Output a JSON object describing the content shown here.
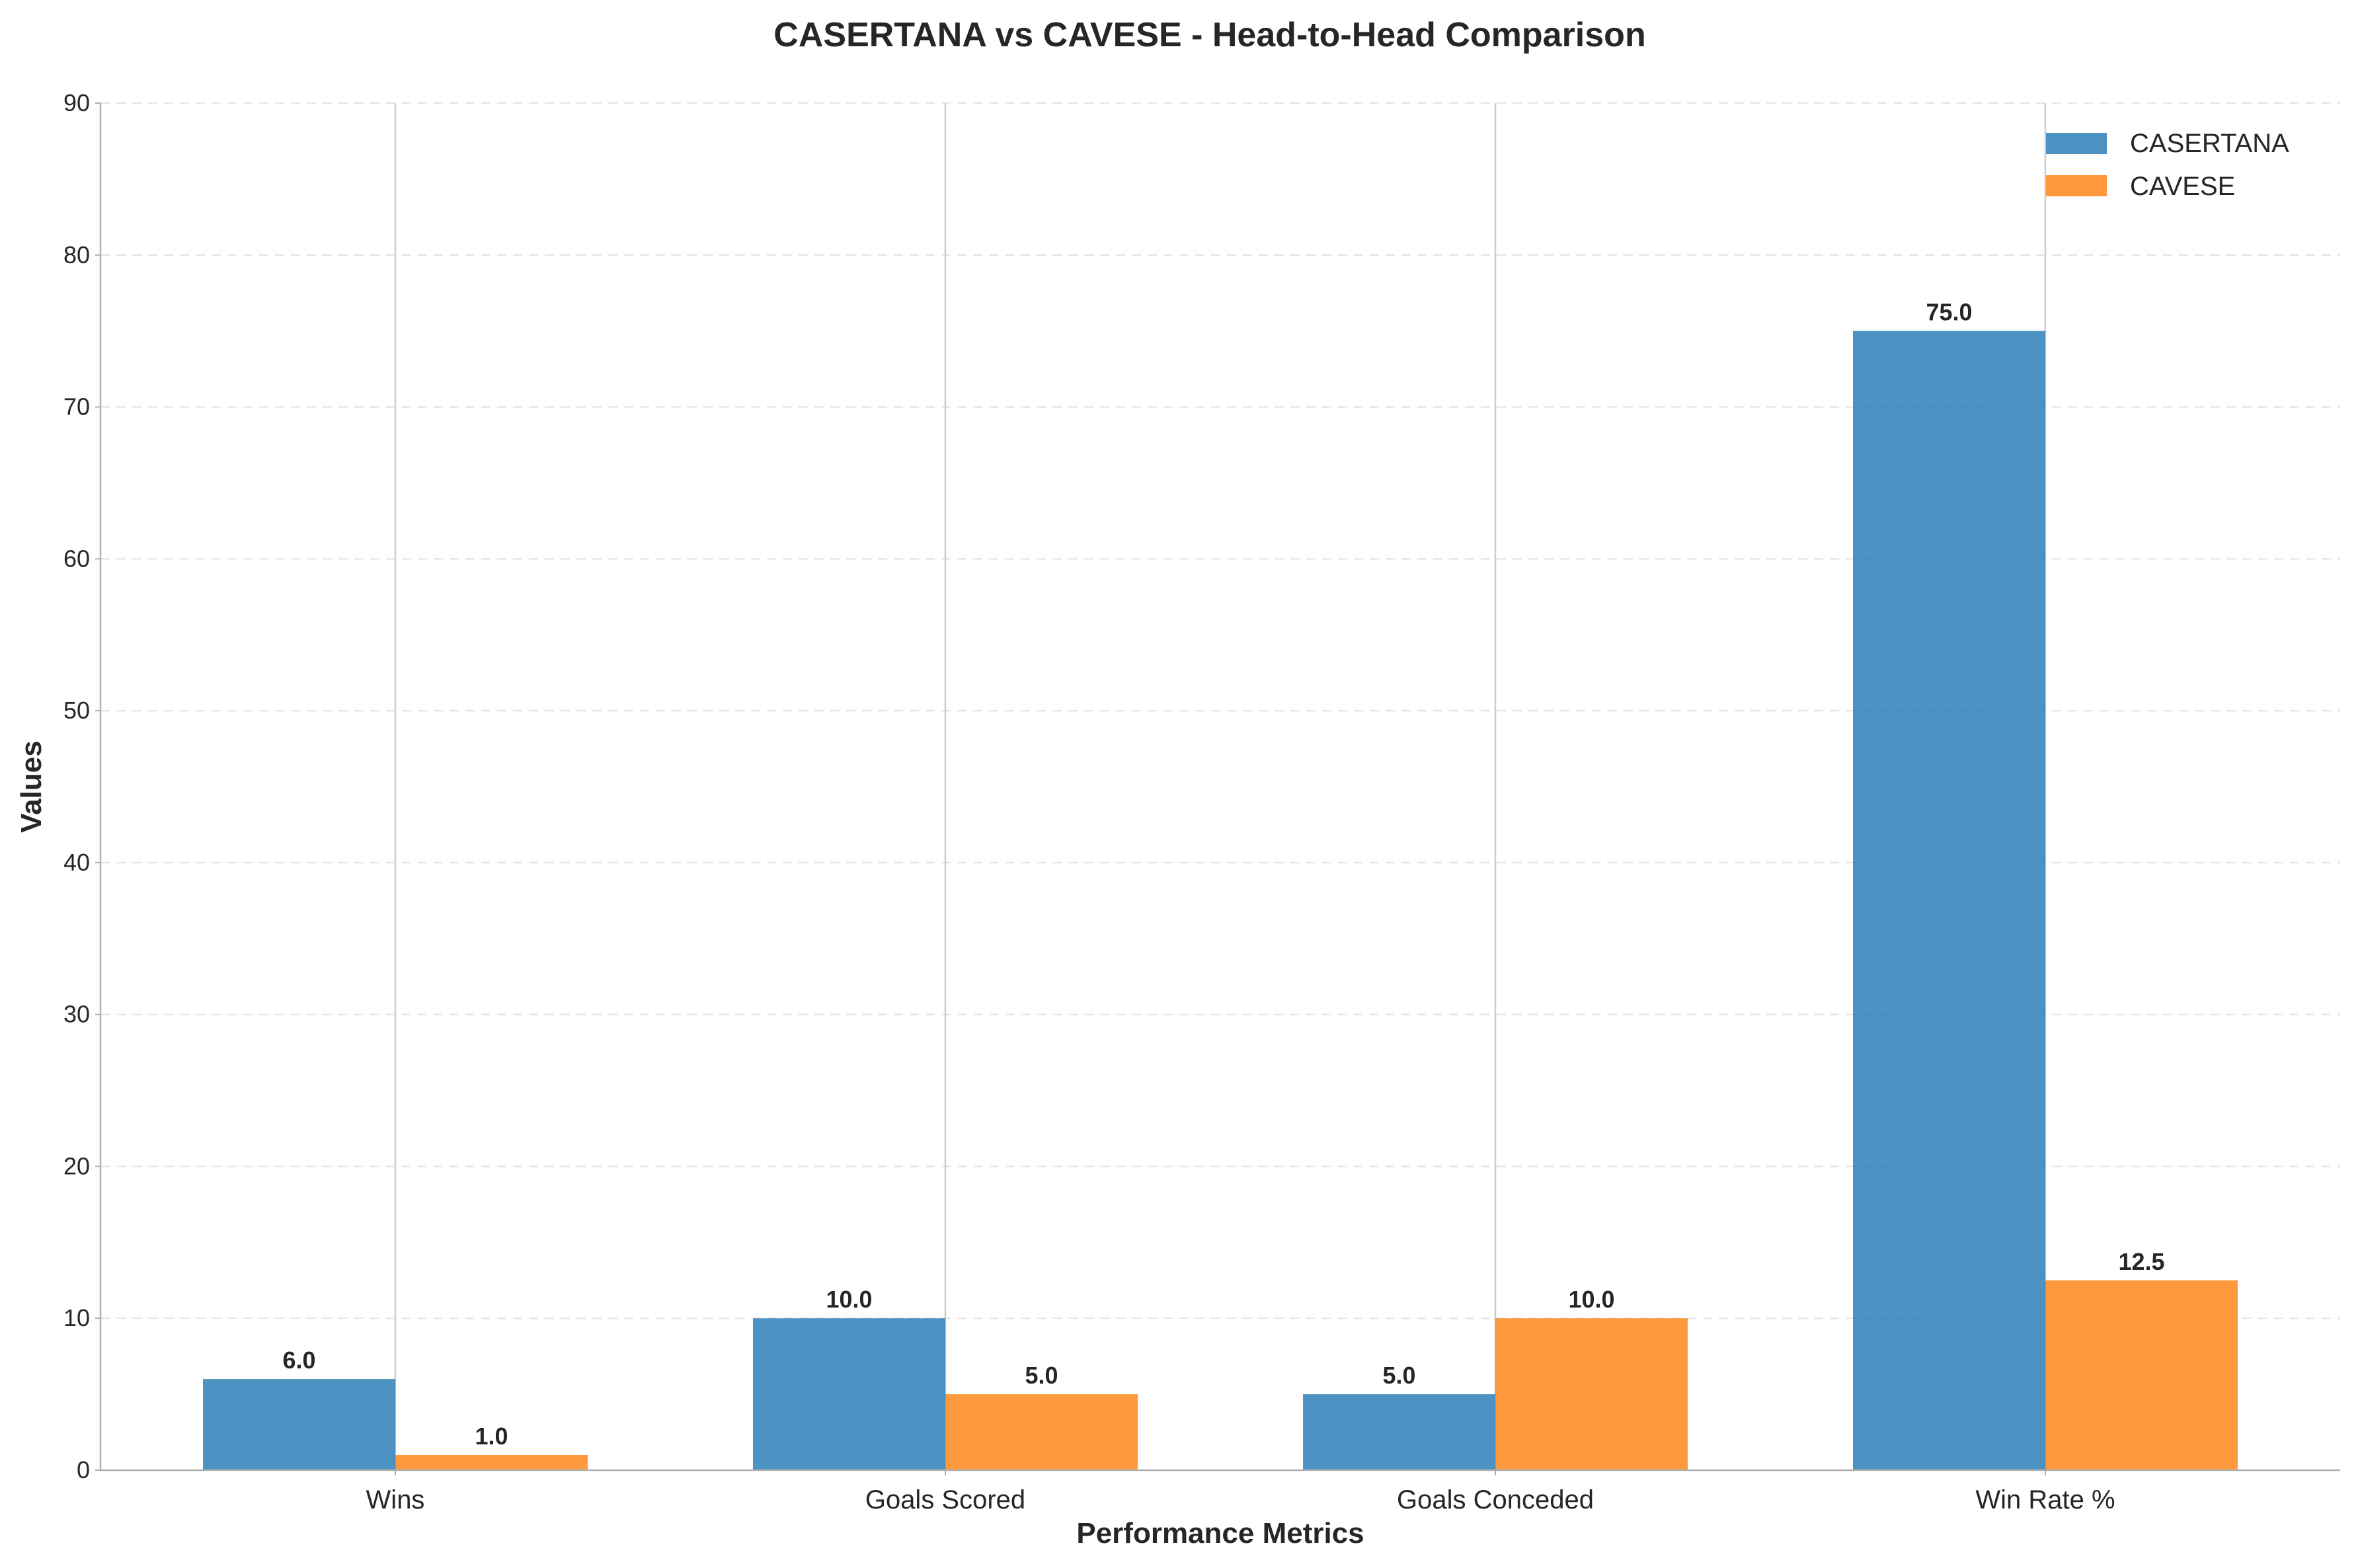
{
  "chart_data": {
    "type": "bar",
    "title": "CASERTANA vs CAVESE - Head-to-Head Comparison",
    "xlabel": "Performance Metrics",
    "ylabel": "Values",
    "categories": [
      "Wins",
      "Goals Scored",
      "Goals Conceded",
      "Win Rate %"
    ],
    "series": [
      {
        "name": "CASERTANA",
        "values": [
          6.0,
          10.0,
          5.0,
          75.0
        ],
        "color": "#1f77b4"
      },
      {
        "name": "CAVESE",
        "values": [
          1.0,
          5.0,
          10.0,
          12.5
        ],
        "color": "#ff7f0e"
      }
    ],
    "ylim": [
      0,
      90
    ],
    "yticks": [
      0,
      10,
      20,
      30,
      40,
      50,
      60,
      70,
      80,
      90
    ],
    "grid": "horizontal-dashed",
    "legend_position": "top-right",
    "value_label_format": "one-decimal"
  }
}
